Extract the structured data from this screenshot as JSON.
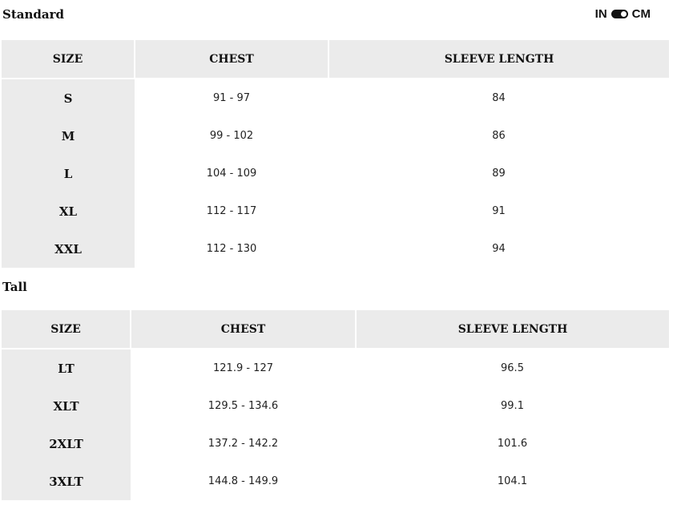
{
  "unit_toggle": {
    "left": "IN",
    "right": "CM",
    "selected": "CM"
  },
  "columns": [
    "SIZE",
    "CHEST",
    "SLEEVE LENGTH"
  ],
  "standard": {
    "title": "Standard",
    "rows": [
      [
        "S",
        "91 - 97",
        "84"
      ],
      [
        "M",
        "99 - 102",
        "86"
      ],
      [
        "L",
        "104 - 109",
        "89"
      ],
      [
        "XL",
        "112 - 117",
        "91"
      ],
      [
        "XXL",
        "112 - 130",
        "94"
      ]
    ]
  },
  "tall": {
    "title": "Tall",
    "rows": [
      [
        "LT",
        "121.9 - 127",
        "96.5"
      ],
      [
        "XLT",
        "129.5 - 134.6",
        "99.1"
      ],
      [
        "2XLT",
        "137.2 - 142.2",
        "101.6"
      ],
      [
        "3XLT",
        "144.8 - 149.9",
        "104.1"
      ]
    ]
  }
}
